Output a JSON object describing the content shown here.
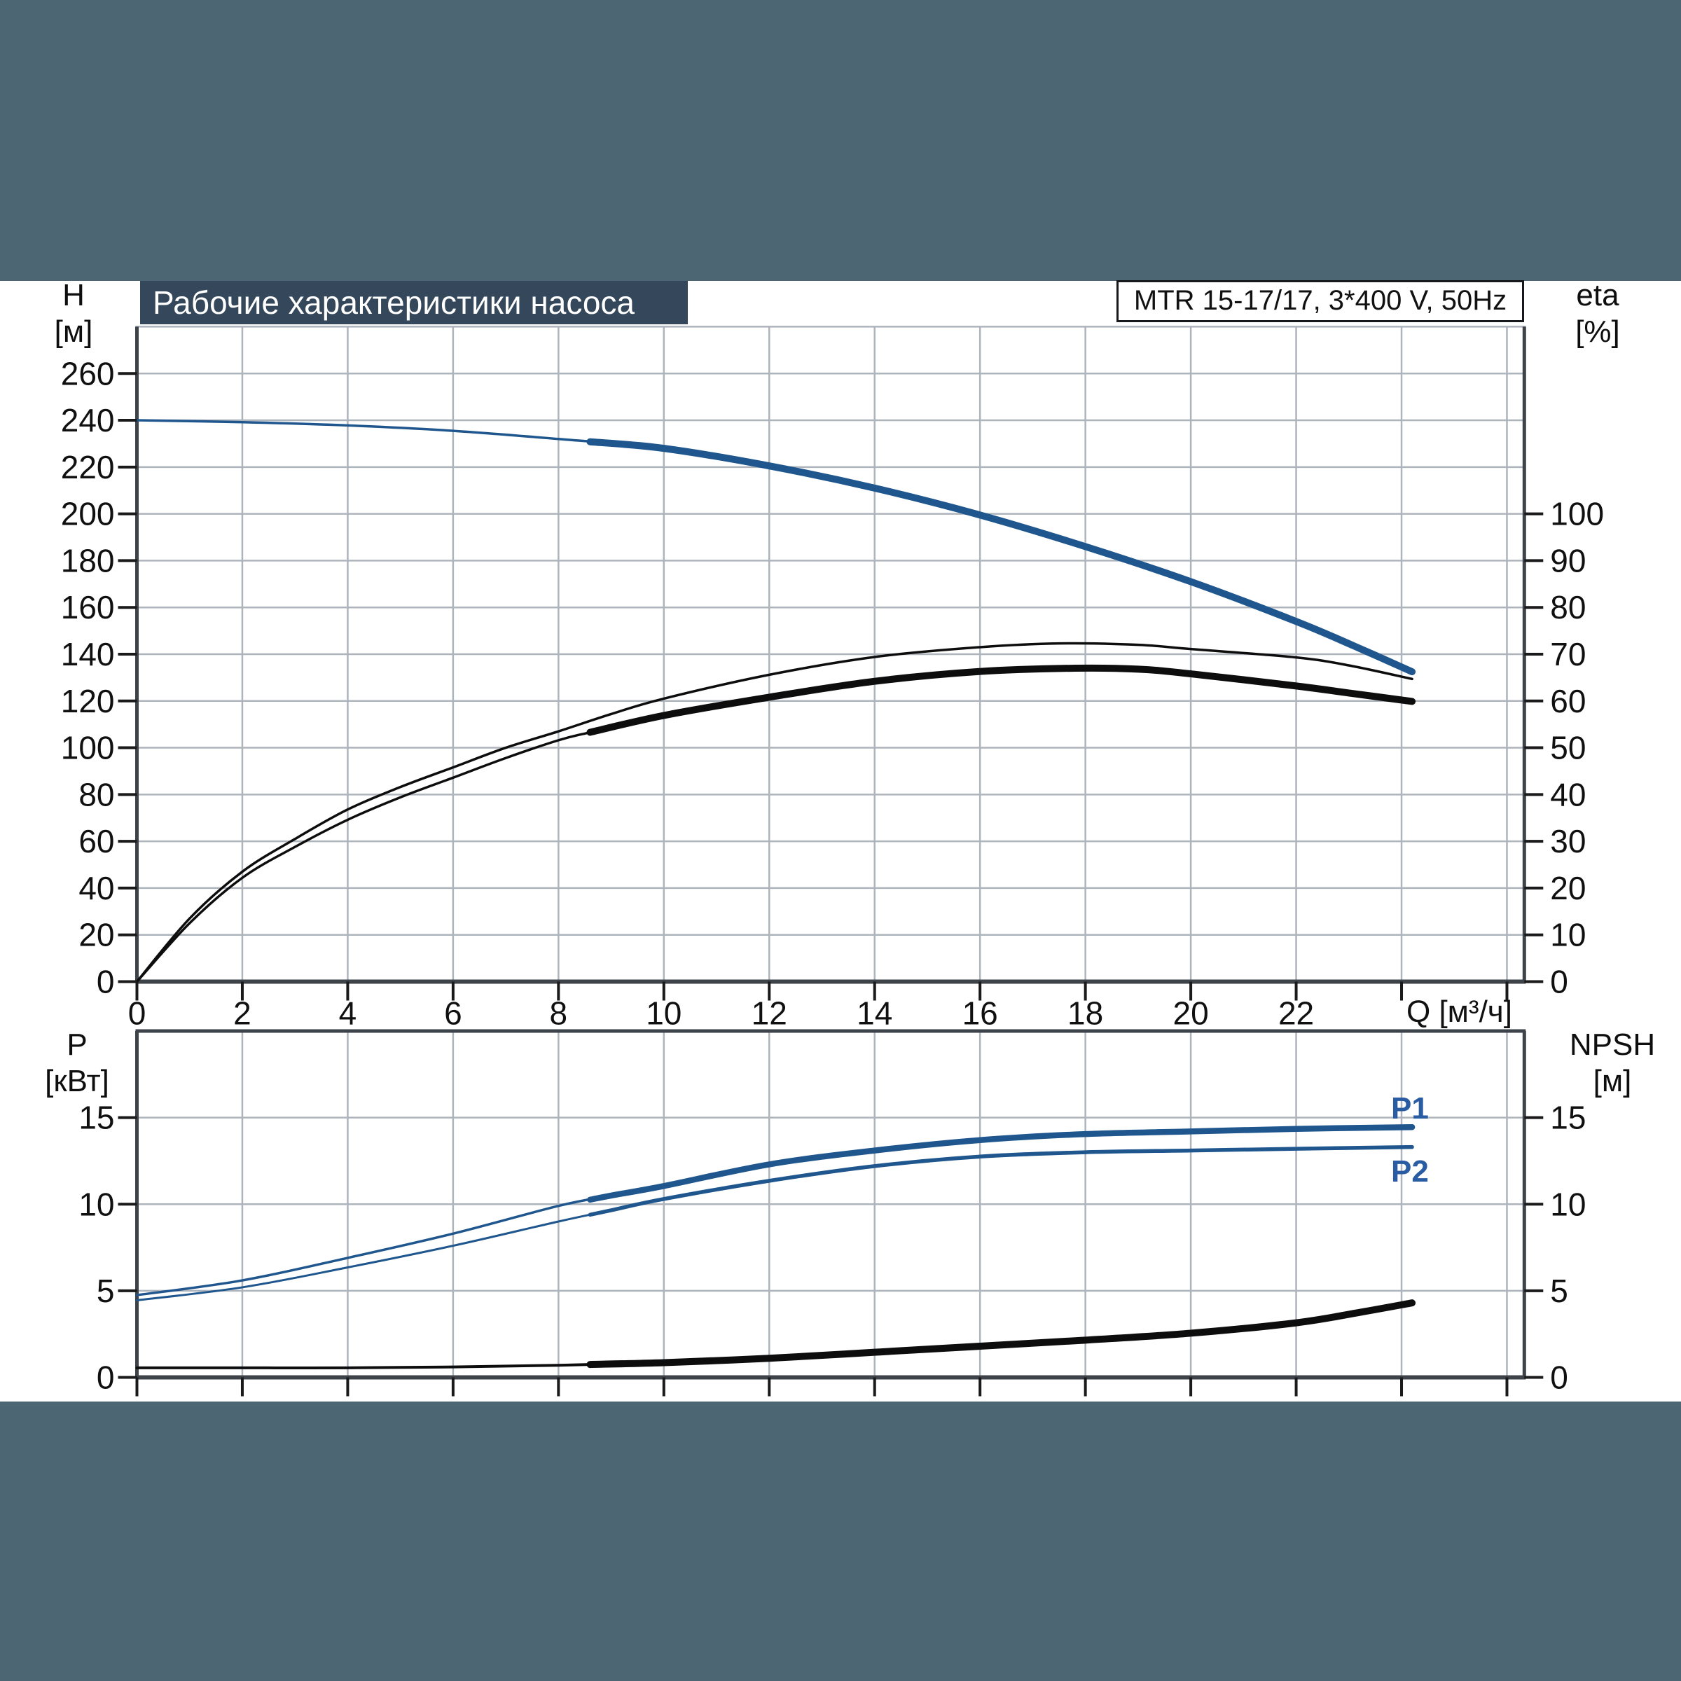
{
  "page": {
    "background": "#ffffff",
    "band_color": "#4d6673",
    "grid_color": "#aeb4bc",
    "frame_color": "#3e434a",
    "tick_color": "#1a1a1a",
    "curve_blue": "#1f568e",
    "curve_black": "#0d0d0d",
    "label_blue": "#2a5ca4"
  },
  "title_bar": {
    "text": "Рабочие характеристики насоса",
    "bg": "#35475a",
    "color": "#ffffff"
  },
  "model_box": {
    "text": "MTR 15-17/17, 3*400 V, 50Hz"
  },
  "top_chart": {
    "y_left": {
      "name": "H",
      "unit": "[м]"
    },
    "y_right": {
      "name": "eta",
      "unit": "[%]"
    },
    "x": {
      "label": "Q [м³/ч]"
    }
  },
  "bottom_chart": {
    "y_left": {
      "name": "P",
      "unit": "[кВт]"
    },
    "y_right": {
      "name": "NPSH",
      "unit": "[м]"
    },
    "labels": {
      "p1": "P1",
      "p2": "P2"
    }
  },
  "chart_data": [
    {
      "id": "head-and-efficiency",
      "type": "line",
      "title": "Рабочие характеристики насоса",
      "x": {
        "label": "Q [м³/ч]",
        "min": 0,
        "max": 26.33,
        "ticks": [
          0,
          2,
          4,
          6,
          8,
          10,
          12,
          14,
          16,
          18,
          20,
          22
        ],
        "grid_step": 2,
        "grid_max": 26
      },
      "y_left": {
        "label": "H [м]",
        "min": 0,
        "max": 280,
        "ticks": [
          260,
          240,
          220,
          200,
          180,
          160,
          140,
          120,
          100,
          80,
          60,
          40,
          20,
          0
        ],
        "grid_step": 20,
        "grid_min": 20,
        "grid_max": 260
      },
      "y_right": {
        "label": "eta [%]",
        "min": 0,
        "max": 140,
        "ticks": [
          100,
          90,
          80,
          70,
          60,
          50,
          40,
          30,
          20,
          10,
          0
        ]
      },
      "legend": "none",
      "grid": true,
      "series": [
        {
          "name": "H",
          "axis": "left",
          "color": "#1f568e",
          "thin": 3.5,
          "thick": 10,
          "thick_from": 8.6,
          "points": [
            [
              0,
              240
            ],
            [
              2,
              239.2
            ],
            [
              4,
              237.8
            ],
            [
              6,
              235.5
            ],
            [
              8,
              232
            ],
            [
              10,
              228
            ],
            [
              12,
              220.5
            ],
            [
              14,
              211
            ],
            [
              16,
              199.5
            ],
            [
              18,
              186
            ],
            [
              20,
              171
            ],
            [
              22,
              154
            ],
            [
              23.1,
              143.5
            ],
            [
              24.2,
              132.5
            ]
          ]
        },
        {
          "name": "eta-max",
          "axis": "right",
          "color": "#0d0d0d",
          "thin": 3.5,
          "points": [
            [
              0,
              0
            ],
            [
              1,
              13.5
            ],
            [
              2,
              23.5
            ],
            [
              3,
              30.5
            ],
            [
              4,
              36.8
            ],
            [
              5,
              41.6
            ],
            [
              6,
              45.8
            ],
            [
              7,
              50
            ],
            [
              8,
              53.5
            ],
            [
              9,
              57.2
            ],
            [
              10,
              60.5
            ],
            [
              12,
              65.6
            ],
            [
              14,
              69.4
            ],
            [
              16,
              71.5
            ],
            [
              17.5,
              72.3
            ],
            [
              19,
              72
            ],
            [
              20,
              71.1
            ],
            [
              22,
              69.3
            ],
            [
              23,
              67.6
            ],
            [
              24.2,
              64.7
            ]
          ]
        },
        {
          "name": "eta",
          "axis": "right",
          "color": "#0d0d0d",
          "thin": 3.5,
          "thick": 10,
          "thick_from": 8.6,
          "points": [
            [
              0,
              0
            ],
            [
              1,
              12.5
            ],
            [
              2,
              22.2
            ],
            [
              3,
              28.8
            ],
            [
              4,
              34.6
            ],
            [
              5,
              39.4
            ],
            [
              6,
              43.6
            ],
            [
              7,
              47.8
            ],
            [
              8,
              51.6
            ],
            [
              8.6,
              53.3
            ],
            [
              10,
              56.9
            ],
            [
              12,
              60.8
            ],
            [
              14,
              64.2
            ],
            [
              16,
              66.3
            ],
            [
              17.8,
              67
            ],
            [
              19,
              66.8
            ],
            [
              20,
              65.8
            ],
            [
              22,
              63.2
            ],
            [
              23,
              61.7
            ],
            [
              24.2,
              59.9
            ]
          ]
        }
      ]
    },
    {
      "id": "power-and-npsh",
      "type": "line",
      "x": {
        "label": "Q [м³/ч]",
        "min": 0,
        "max": 26.33,
        "ticks": [],
        "grid_step": 2,
        "grid_max": 26
      },
      "y_left": {
        "label": "P [кВт]",
        "min": 0,
        "max": 20,
        "ticks": [
          15,
          10,
          5,
          0
        ],
        "grid_step": 5,
        "grid_min": 5,
        "grid_max": 15
      },
      "y_right": {
        "label": "NPSH [м]",
        "min": 0,
        "max": 20,
        "ticks": [
          15,
          10,
          5,
          0
        ]
      },
      "legend": "inline",
      "grid": true,
      "series": [
        {
          "name": "P1",
          "axis": "left",
          "color": "#1f568e",
          "thin": 3.5,
          "thick": 8.5,
          "thick_from": 8.6,
          "points": [
            [
              0,
              4.75
            ],
            [
              2,
              5.6
            ],
            [
              4,
              6.9
            ],
            [
              6,
              8.3
            ],
            [
              8,
              9.9
            ],
            [
              9,
              10.5
            ],
            [
              10,
              11.05
            ],
            [
              12,
              12.3
            ],
            [
              14,
              13.1
            ],
            [
              16,
              13.7
            ],
            [
              18,
              14.05
            ],
            [
              20,
              14.2
            ],
            [
              22,
              14.35
            ],
            [
              24.2,
              14.45
            ]
          ]
        },
        {
          "name": "P2",
          "axis": "left",
          "color": "#1f568e",
          "thin": 3,
          "thick": 5.5,
          "thick_from": 8.6,
          "points": [
            [
              0,
              4.45
            ],
            [
              2,
              5.2
            ],
            [
              4,
              6.35
            ],
            [
              6,
              7.6
            ],
            [
              8,
              9.0
            ],
            [
              9,
              9.65
            ],
            [
              10,
              10.3
            ],
            [
              12,
              11.35
            ],
            [
              14,
              12.2
            ],
            [
              16,
              12.75
            ],
            [
              18,
              13.0
            ],
            [
              20,
              13.1
            ],
            [
              22,
              13.2
            ],
            [
              24.2,
              13.3
            ]
          ]
        },
        {
          "name": "NPSH",
          "axis": "right",
          "color": "#0d0d0d",
          "thin": 4,
          "thick": 10,
          "thick_from": 8.6,
          "points": [
            [
              0,
              0.55
            ],
            [
              2,
              0.55
            ],
            [
              4,
              0.55
            ],
            [
              6,
              0.6
            ],
            [
              8,
              0.7
            ],
            [
              10,
              0.85
            ],
            [
              12,
              1.1
            ],
            [
              14,
              1.45
            ],
            [
              16,
              1.8
            ],
            [
              18,
              2.15
            ],
            [
              20,
              2.55
            ],
            [
              22,
              3.15
            ],
            [
              23.2,
              3.75
            ],
            [
              24.2,
              4.3
            ]
          ]
        }
      ]
    }
  ]
}
